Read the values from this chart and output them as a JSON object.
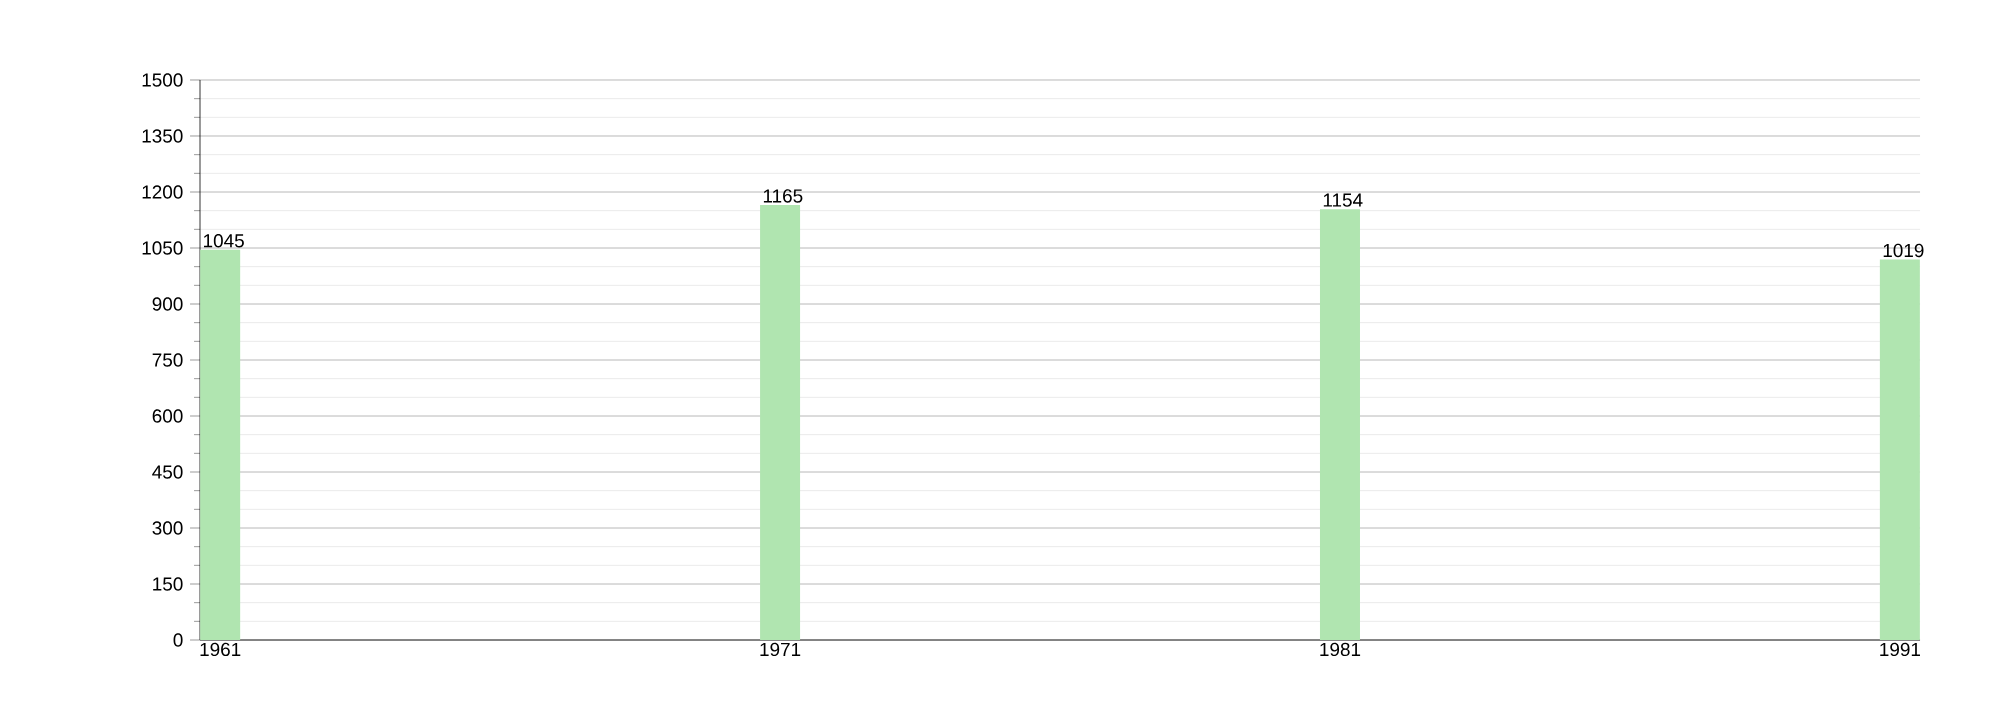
{
  "chart_data": {
    "type": "bar",
    "x": [
      1961,
      1971,
      1981,
      1991
    ],
    "values": [
      1045,
      1165,
      1154,
      1019
    ],
    "color": "#b0e5b0",
    "xlim": [
      1960.64,
      1991.36
    ],
    "xticks": [
      1961,
      1971,
      1981,
      1991
    ],
    "ylim": [
      0,
      1500
    ],
    "yticks": [
      0,
      150,
      300,
      450,
      600,
      750,
      900,
      1050,
      1200,
      1350,
      1500
    ],
    "grid": "y",
    "data_labels": true
  }
}
